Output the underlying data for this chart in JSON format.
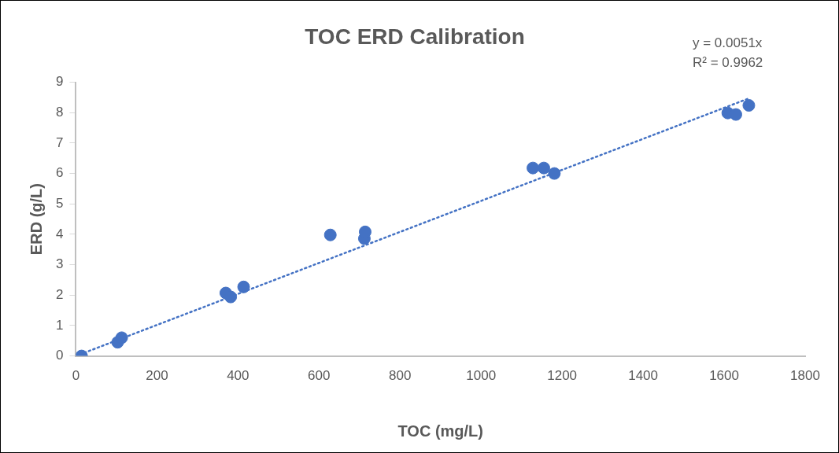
{
  "chart_data": {
    "type": "scatter",
    "title": "TOC ERD Calibration",
    "xlabel": "TOC (mg/L)",
    "ylabel": "ERD (g/L)",
    "annotations": [
      "y = 0.0051x",
      "R² = 0.9962"
    ],
    "xlim": [
      0,
      1800
    ],
    "xticks": [
      0,
      200,
      400,
      600,
      800,
      1000,
      1200,
      1400,
      1600,
      1800
    ],
    "ylim": [
      0,
      9
    ],
    "yticks": [
      0,
      1,
      2,
      3,
      4,
      5,
      6,
      7,
      8,
      9
    ],
    "grid": false,
    "legend": false,
    "marker": "circle",
    "series": [
      {
        "color": "#4472c4",
        "x": [
          14,
          103,
          113,
          370,
          382,
          414,
          628,
          712,
          714,
          1128,
          1155,
          1181,
          1609,
          1629,
          1661
        ],
        "values": [
          0,
          0.45,
          0.6,
          2.07,
          1.94,
          2.27,
          3.98,
          3.86,
          4.08,
          6.18,
          6.18,
          6.0,
          7.99,
          7.94,
          8.24
        ]
      },
      {
        "type": "line",
        "color": "#4472c4",
        "marker": "none",
        "line_style": "dotted",
        "x": [
          10,
          1661
        ],
        "values": [
          0.05,
          8.47
        ]
      }
    ]
  }
}
